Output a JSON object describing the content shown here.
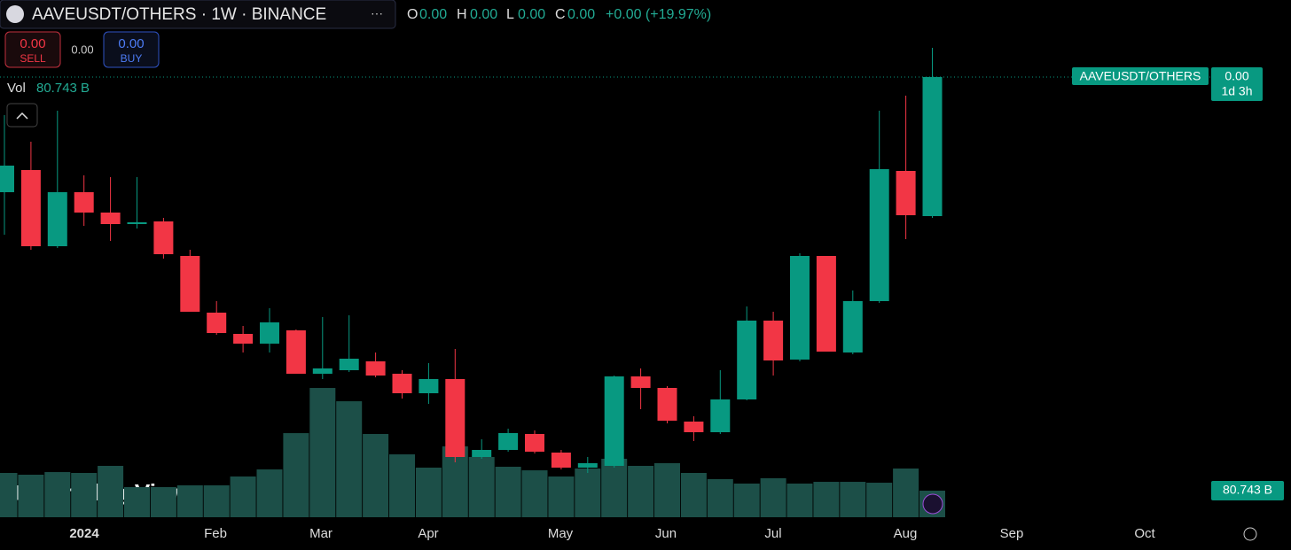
{
  "header": {
    "symbol": "AAVEUSDT/OTHERS · 1W · BINANCE",
    "ohlc": [
      {
        "key": "O",
        "value": "0.00"
      },
      {
        "key": "H",
        "value": "0.00"
      },
      {
        "key": "L",
        "value": "0.00"
      },
      {
        "key": "C",
        "value": "0.00"
      }
    ],
    "change": "+0.00 (+19.97%)"
  },
  "trade": {
    "sell_price": "0.00",
    "sell": "SELL",
    "spread": "0.00",
    "buy_price": "0.00",
    "buy": "BUY"
  },
  "chart_data": {
    "type": "candlestick",
    "open": [
      367,
      392,
      306,
      367,
      344,
      331,
      334,
      295,
      231,
      207,
      196,
      211,
      162,
      166,
      176,
      162,
      140,
      156,
      68,
      76,
      94,
      73,
      56,
      58,
      159,
      146,
      108,
      96,
      133,
      222,
      178,
      295,
      186,
      244,
      391,
      340
    ],
    "high": [
      454,
      424,
      459,
      386,
      384,
      384,
      338,
      302,
      244,
      216,
      236,
      212,
      226,
      228,
      186,
      166,
      174,
      190,
      88,
      100,
      98,
      76,
      68,
      160,
      168,
      148,
      114,
      166,
      238,
      232,
      298,
      295,
      256,
      459,
      476,
      530
    ],
    "low": [
      319,
      302,
      304,
      329,
      312,
      326,
      292,
      232,
      206,
      186,
      186,
      162,
      156,
      164,
      158,
      134,
      128,
      62,
      66,
      74,
      72,
      54,
      50,
      56,
      122,
      106,
      86,
      94,
      132,
      160,
      176,
      187,
      184,
      242,
      314,
      338
    ],
    "close": [
      397,
      306,
      367,
      344,
      331,
      333,
      297,
      232,
      208,
      196,
      220,
      162,
      168,
      179,
      160,
      140,
      156,
      68,
      76,
      95,
      74,
      56,
      61,
      159,
      146,
      109,
      96,
      133,
      222,
      177,
      295,
      187,
      244,
      393,
      341,
      497
    ],
    "ylim": [
      0,
      584
    ],
    "up_color": "#089981",
    "down_color": "#f23645",
    "volume": {
      "name": "Vol",
      "values": [
        134.6,
        129.2,
        137.2,
        134.6,
        156.1,
        91.5,
        91.5,
        96.9,
        96.9,
        123.8,
        145.3,
        255.6,
        392.9,
        352.5,
        253.0,
        191.1,
        150.7,
        215.3,
        183.0,
        153.4,
        142.6,
        123.8,
        148.0,
        177.6,
        156.1,
        164.2,
        134.6,
        115.7,
        102.3,
        118.4,
        102.3,
        107.6,
        107.6,
        104.9,
        148.0,
        80.743
      ],
      "value_label": "80.743 B",
      "ylim": [
        0,
        1572
      ],
      "color": "#1c4f48"
    },
    "x_labels": [
      "2024",
      "Feb",
      "Mar",
      "Apr",
      "May",
      "Jun",
      "Jul",
      "Aug",
      "Sep",
      "Oct"
    ],
    "price_label": {
      "symbol": "AAVEUSDT/OTHERS",
      "price": "0.00",
      "countdown": "1d 3h"
    },
    "watermark": "TradingView"
  }
}
